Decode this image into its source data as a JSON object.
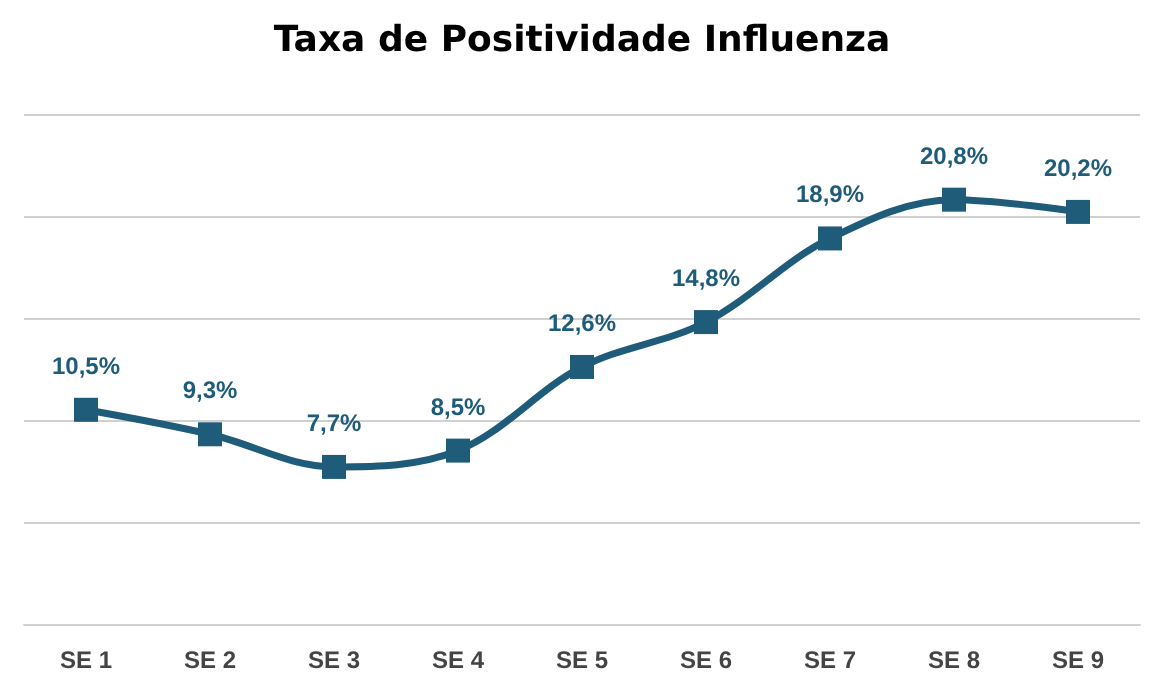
{
  "chart_data": {
    "type": "line",
    "title": "Taxa de Positividade Influenza",
    "categories": [
      "SE 1",
      "SE 2",
      "SE 3",
      "SE 4",
      "SE 5",
      "SE 6",
      "SE 7",
      "SE 8",
      "SE 9"
    ],
    "series": [
      {
        "color": "#1f5c7a",
        "values": [
          10.5,
          9.3,
          7.7,
          8.5,
          12.6,
          14.8,
          18.9,
          20.8,
          20.2
        ],
        "value_labels": [
          "10,5%",
          "9,3%",
          "7,7%",
          "8,5%",
          "12,6%",
          "14,8%",
          "18,9%",
          "20,8%",
          "20,2%"
        ]
      }
    ],
    "ylim": [
      0,
      25
    ],
    "yticks": [
      {
        "value": 0,
        "label": null
      },
      {
        "value": 5,
        "label": null
      },
      {
        "value": 10,
        "label": null
      },
      {
        "value": 15,
        "label": null
      },
      {
        "value": 20,
        "label": null
      },
      {
        "value": 25,
        "label": null
      }
    ],
    "tick_labels": "x",
    "grid": "y",
    "marker": "square",
    "line_style": "solid"
  }
}
